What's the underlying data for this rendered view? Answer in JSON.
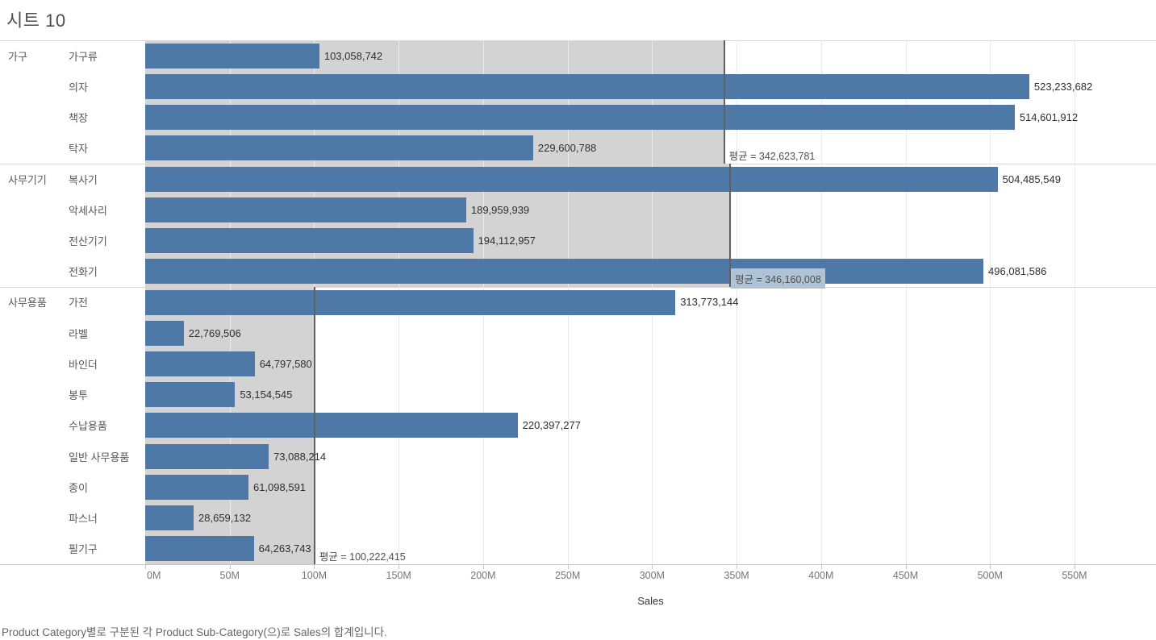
{
  "title": "시트 10",
  "caption": "Product Category별로 구분된 각 Product Sub-Category(으)로 Sales의 합계입니다.",
  "colors": {
    "bar": "#4e79a7",
    "band": "#d3d3d3",
    "reference_line": "#606060",
    "highlight": "#aec3d5",
    "grid": "#eaeaea"
  },
  "chart_data": {
    "type": "bar",
    "orientation": "horizontal",
    "title": "시트 10",
    "xlabel": "Sales",
    "xlim_m": [
      0,
      598
    ],
    "grid": true,
    "x_ticks": [
      {
        "label": "0M",
        "m": 0
      },
      {
        "label": "50M",
        "m": 50
      },
      {
        "label": "100M",
        "m": 100
      },
      {
        "label": "150M",
        "m": 150
      },
      {
        "label": "200M",
        "m": 200
      },
      {
        "label": "250M",
        "m": 250
      },
      {
        "label": "300M",
        "m": 300
      },
      {
        "label": "350M",
        "m": 350
      },
      {
        "label": "400M",
        "m": 400
      },
      {
        "label": "450M",
        "m": 450
      },
      {
        "label": "500M",
        "m": 500
      },
      {
        "label": "550M",
        "m": 550
      }
    ],
    "groups": [
      {
        "category": "가구",
        "average": {
          "value": 342623781,
          "display": "평균 = 342,623,781",
          "highlighted": false
        },
        "items": [
          {
            "label": "가구류",
            "value": 103058742,
            "display": "103,058,742"
          },
          {
            "label": "의자",
            "value": 523233682,
            "display": "523,233,682"
          },
          {
            "label": "책장",
            "value": 514601912,
            "display": "514,601,912"
          },
          {
            "label": "탁자",
            "value": 229600788,
            "display": "229,600,788"
          }
        ]
      },
      {
        "category": "사무기기",
        "average": {
          "value": 346160008,
          "display": "평균 = 346,160,008",
          "highlighted": true
        },
        "items": [
          {
            "label": "복사기",
            "value": 504485549,
            "display": "504,485,549"
          },
          {
            "label": "악세사리",
            "value": 189959939,
            "display": "189,959,939"
          },
          {
            "label": "전산기기",
            "value": 194112957,
            "display": "194,112,957"
          },
          {
            "label": "전화기",
            "value": 496081586,
            "display": "496,081,586"
          }
        ]
      },
      {
        "category": "사무용품",
        "average": {
          "value": 100222415,
          "display": "평균 = 100,222,415",
          "highlighted": false
        },
        "items": [
          {
            "label": "가전",
            "value": 313773144,
            "display": "313,773,144"
          },
          {
            "label": "라벨",
            "value": 22769506,
            "display": "22,769,506"
          },
          {
            "label": "바인더",
            "value": 64797580,
            "display": "64,797,580"
          },
          {
            "label": "봉투",
            "value": 53154545,
            "display": "53,154,545"
          },
          {
            "label": "수납용품",
            "value": 220397277,
            "display": "220,397,277"
          },
          {
            "label": "일반 사무용품",
            "value": 73088214,
            "display": "73,088,214"
          },
          {
            "label": "종이",
            "value": 61098591,
            "display": "61,098,591"
          },
          {
            "label": "파스너",
            "value": 28659132,
            "display": "28,659,132"
          },
          {
            "label": "필기구",
            "value": 64263743,
            "display": "64,263,743"
          }
        ]
      }
    ]
  }
}
